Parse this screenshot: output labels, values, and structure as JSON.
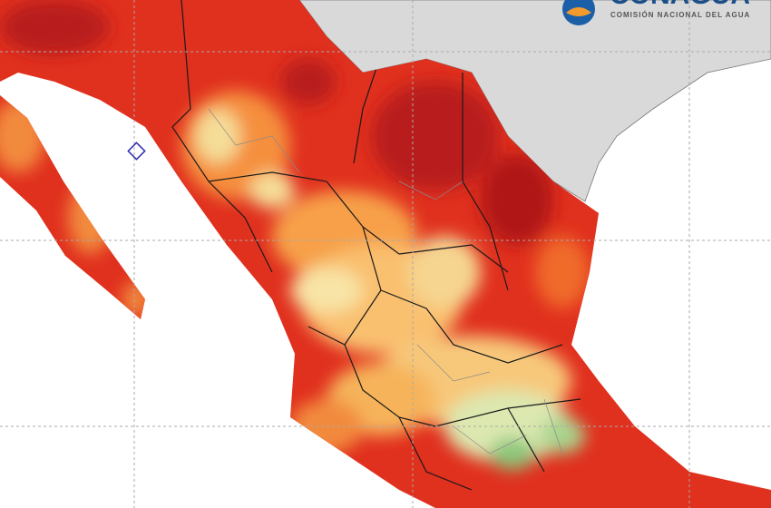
{
  "logo": {
    "name": "CONAGUA",
    "subtitle": "COMISIÓN NACIONAL DEL AGUA"
  }
}
